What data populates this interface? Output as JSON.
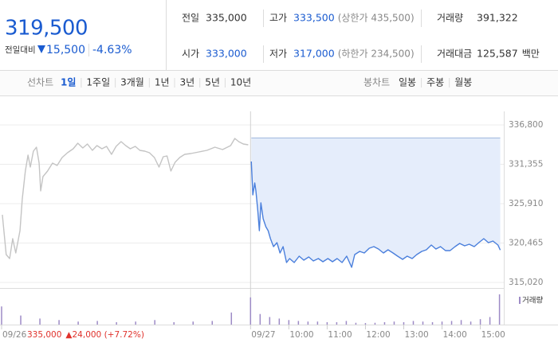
{
  "header": {
    "price": "319,500",
    "change_label": "전일대비",
    "change": "15,500",
    "change_pct": "-4.63%",
    "stats": [
      {
        "label": "전일",
        "value": "335,000"
      },
      {
        "label": "고가",
        "value": "333,500",
        "note": "(상한가 435,500)"
      },
      {
        "label": "거래량",
        "value": "391,322"
      },
      {
        "label": "시가",
        "value": "333,000"
      },
      {
        "label": "저가",
        "value": "317,000",
        "note": "(하한가 234,500)"
      },
      {
        "label": "거래대금",
        "value": "125,587",
        "unit": "백만"
      }
    ]
  },
  "tabs": {
    "line_chart": "선차트",
    "line_periods": [
      "1일",
      "1주일",
      "3개월",
      "1년",
      "3년",
      "5년",
      "10년"
    ],
    "candle_chart": "봉차트",
    "candle_periods": [
      "일봉",
      "주봉",
      "월봉"
    ]
  },
  "chart_data": {
    "type": "line",
    "xlim": [
      0,
      13.05
    ],
    "xticks": [
      {
        "value": 0,
        "label": "09/26"
      },
      {
        "value": 6.5,
        "label": "09/27"
      },
      {
        "value": 7.5,
        "label": "10:00"
      },
      {
        "value": 8.5,
        "label": "11:00"
      },
      {
        "value": 9.5,
        "label": "12:00"
      },
      {
        "value": 10.5,
        "label": "13:00"
      },
      {
        "value": 11.5,
        "label": "14:00"
      },
      {
        "value": 12.5,
        "label": "15:00"
      }
    ],
    "ylim": [
      315020,
      336800
    ],
    "yticks": [
      {
        "value": 315020,
        "label": "315,020"
      },
      {
        "value": 320465,
        "label": "320,465"
      },
      {
        "value": 325910,
        "label": "325,910"
      },
      {
        "value": 331355,
        "label": "331,355"
      },
      {
        "value": 336800,
        "label": "336,800"
      }
    ],
    "grid": true,
    "reference_value": 335000,
    "series": [
      {
        "color": "#c4c4c4",
        "x": [
          0.02,
          0.12,
          0.21,
          0.29,
          0.37,
          0.48,
          0.54,
          0.62,
          0.69,
          0.75,
          0.83,
          0.91,
          0.98,
          1.02,
          1.08,
          1.2,
          1.33,
          1.45,
          1.58,
          1.72,
          1.87,
          1.99,
          2.12,
          2.24,
          2.37,
          2.49,
          2.62,
          2.74,
          2.87,
          2.99,
          3.12,
          3.24,
          3.36,
          3.49,
          3.61,
          3.74,
          3.86,
          3.99,
          4.11,
          4.22,
          4.32,
          4.42,
          4.53,
          4.65,
          4.78,
          4.94,
          5.15,
          5.36,
          5.57,
          5.77,
          5.98,
          6.09,
          6.19,
          6.31,
          6.44
        ],
        "values": [
          324370,
          318870,
          318320,
          321070,
          319090,
          322170,
          326570,
          330420,
          332620,
          330970,
          333170,
          333720,
          331520,
          327670,
          329650,
          330420,
          331520,
          331190,
          332290,
          332950,
          333500,
          334270,
          333610,
          334160,
          333280,
          333940,
          333500,
          333830,
          332730,
          333830,
          334490,
          333940,
          333500,
          333830,
          333280,
          333170,
          332950,
          332290,
          330970,
          332400,
          332510,
          330420,
          331630,
          332290,
          332730,
          332840,
          333060,
          333280,
          333720,
          333390,
          333940,
          334930,
          334490,
          334160,
          334050
        ]
      },
      {
        "color": "#4a7fdc",
        "fill": "#e5edfb",
        "x": [
          6.52,
          6.56,
          6.61,
          6.64,
          6.69,
          6.73,
          6.77,
          6.83,
          6.9,
          6.96,
          7.02,
          7.1,
          7.19,
          7.27,
          7.35,
          7.44,
          7.52,
          7.64,
          7.77,
          7.89,
          8.02,
          8.14,
          8.27,
          8.39,
          8.52,
          8.64,
          8.76,
          8.89,
          9.01,
          9.14,
          9.22,
          9.35,
          9.47,
          9.6,
          9.72,
          9.84,
          9.97,
          10.09,
          10.22,
          10.34,
          10.47,
          10.59,
          10.72,
          10.84,
          10.97,
          11.09,
          11.22,
          11.34,
          11.46,
          11.59,
          11.71,
          11.84,
          11.96,
          12.09,
          12.21,
          12.34,
          12.46,
          12.59,
          12.71,
          12.83,
          12.96,
          13.02
        ],
        "values": [
          331740,
          327120,
          328770,
          327670,
          324920,
          322170,
          326020,
          323820,
          322720,
          322170,
          321070,
          319970,
          320520,
          319090,
          319970,
          317770,
          318320,
          317770,
          318650,
          318100,
          318540,
          317990,
          318320,
          317880,
          318320,
          317880,
          318320,
          317770,
          318650,
          317110,
          318870,
          319310,
          319090,
          319750,
          319970,
          319640,
          319090,
          319530,
          319090,
          318650,
          318210,
          318650,
          318320,
          318870,
          319310,
          319530,
          320190,
          319640,
          319970,
          319420,
          319420,
          319970,
          320410,
          320080,
          320300,
          319970,
          320520,
          321070,
          320520,
          320740,
          320190,
          319500
        ]
      }
    ],
    "volume": {
      "name": "거래량",
      "color": "#9d8bc6",
      "ylim": [
        0,
        100
      ],
      "x": [
        0,
        0.5,
        1,
        1.5,
        2,
        2.5,
        3,
        3.5,
        4,
        4.5,
        5,
        5.5,
        6,
        6.5,
        6.75,
        7,
        7.25,
        7.5,
        7.75,
        8,
        8.25,
        8.5,
        8.75,
        9,
        9.25,
        9.5,
        9.75,
        10,
        10.25,
        10.5,
        10.75,
        11,
        11.25,
        11.5,
        11.75,
        12,
        12.25,
        12.5,
        12.75,
        13
      ],
      "values": [
        60,
        30,
        20,
        15,
        10,
        12,
        8,
        10,
        15,
        8,
        10,
        12,
        40,
        90,
        35,
        25,
        20,
        15,
        12,
        10,
        10,
        8,
        8,
        12,
        6,
        5,
        6,
        8,
        10,
        8,
        12,
        10,
        8,
        10,
        12,
        15,
        10,
        18,
        25,
        100
      ]
    },
    "prev_day_summary": {
      "close": "335,000",
      "change": "▲24,000 (+7.72%)"
    }
  }
}
